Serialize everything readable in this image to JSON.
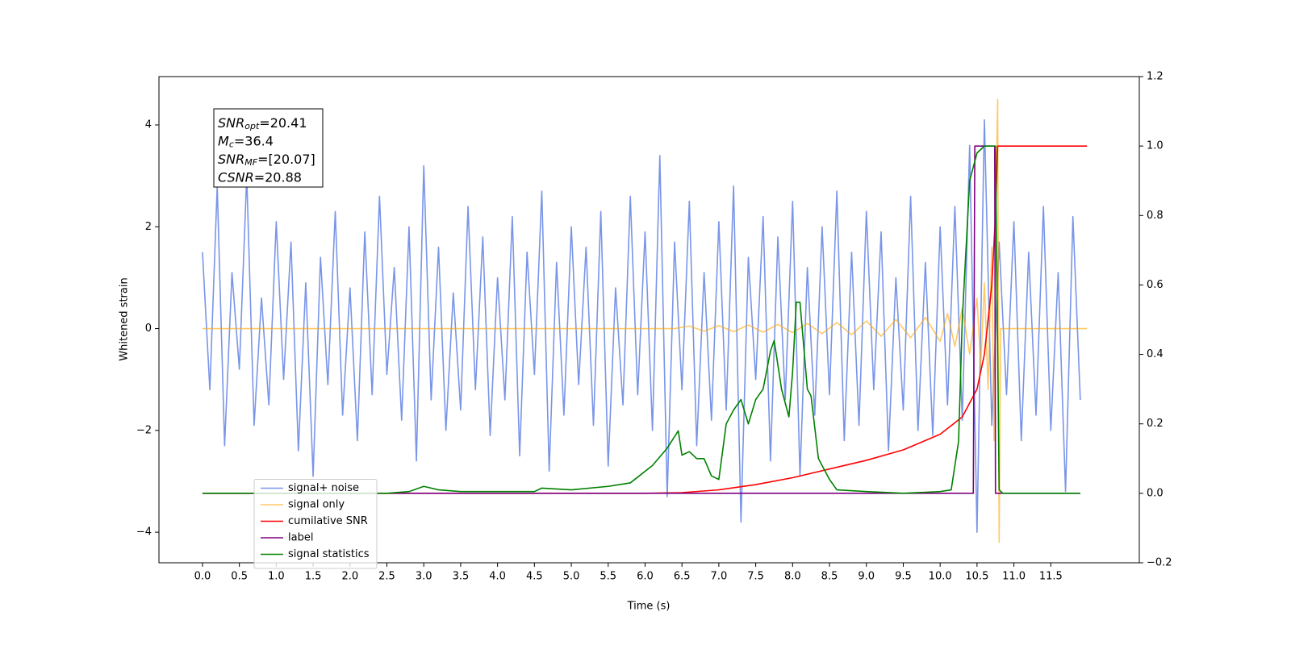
{
  "chart_data": {
    "type": "line",
    "x_label": "Time (s)",
    "y_label": "Whitened strain",
    "xlim": [
      -0.59,
      12.7
    ],
    "ylim": [
      -4.6,
      4.95
    ],
    "y2lim": [
      -0.2,
      1.2
    ],
    "xticks": [
      {
        "value": 0,
        "label": "0.0"
      },
      0.5,
      {
        "value": 1,
        "label": "1.0"
      },
      1.5,
      {
        "value": 2,
        "label": "2.0"
      },
      2.5,
      {
        "value": 3,
        "label": "3.0"
      },
      3.5,
      {
        "value": 4,
        "label": "4.0"
      },
      4.5,
      {
        "value": 5,
        "label": "5.0"
      },
      5.5,
      {
        "value": 6,
        "label": "6.0"
      },
      6.5,
      {
        "value": 7,
        "label": "7.0"
      },
      7.5,
      {
        "value": 8,
        "label": "8.0"
      },
      8.5,
      {
        "value": 9,
        "label": "9.0"
      },
      9.5,
      {
        "value": 10,
        "label": "10.0"
      },
      10.5,
      {
        "value": 11,
        "label": "11.0"
      },
      11.5
    ],
    "yticks": [
      {
        "value": -4,
        "label": "−4"
      },
      {
        "value": -2,
        "label": "−2"
      },
      0,
      2,
      4
    ],
    "y2ticks": [
      {
        "value": -0.2,
        "label": "−0.2"
      },
      {
        "value": 0,
        "label": "0.0"
      },
      0.2,
      0.4,
      0.6,
      0.8,
      {
        "value": 1,
        "label": "1.0"
      },
      1.2
    ],
    "legend": "lower left",
    "annotations": [
      {
        "symbol": "SNR",
        "subscript": "opt",
        "text": "=20.41"
      },
      {
        "symbol": "M",
        "subscript": "c",
        "text": "=36.4"
      },
      {
        "symbol": "SNR",
        "subscript": "MF",
        "text": "=[20.07]"
      },
      {
        "symbol": "CSNR",
        "text": "=20.88"
      }
    ],
    "series": [
      {
        "name": "signal+ noise",
        "color": "#6a8ae6",
        "opacity": 0.9,
        "x": [
          0.0,
          0.1,
          0.2,
          0.3,
          0.4,
          0.5,
          0.6,
          0.7,
          0.8,
          0.9,
          1.0,
          1.1,
          1.2,
          1.3,
          1.4,
          1.5,
          1.6,
          1.7,
          1.8,
          1.9,
          2.0,
          2.1,
          2.2,
          2.3,
          2.4,
          2.5,
          2.6,
          2.7,
          2.8,
          2.9,
          3.0,
          3.1,
          3.2,
          3.3,
          3.4,
          3.5,
          3.6,
          3.7,
          3.8,
          3.9,
          4.0,
          4.1,
          4.2,
          4.3,
          4.4,
          4.5,
          4.6,
          4.7,
          4.8,
          4.9,
          5.0,
          5.1,
          5.2,
          5.3,
          5.4,
          5.5,
          5.6,
          5.7,
          5.8,
          5.9,
          6.0,
          6.1,
          6.2,
          6.3,
          6.4,
          6.5,
          6.6,
          6.7,
          6.8,
          6.9,
          7.0,
          7.1,
          7.2,
          7.3,
          7.4,
          7.5,
          7.6,
          7.7,
          7.8,
          7.9,
          8.0,
          8.1,
          8.2,
          8.3,
          8.4,
          8.5,
          8.6,
          8.7,
          8.8,
          8.9,
          9.0,
          9.1,
          9.2,
          9.3,
          9.4,
          9.5,
          9.6,
          9.7,
          9.8,
          9.9,
          10.0,
          10.1,
          10.2,
          10.3,
          10.4,
          10.5,
          10.6,
          10.7,
          10.8,
          10.9,
          11.0,
          11.1,
          11.2,
          11.3,
          11.4,
          11.5,
          11.6,
          11.7,
          11.8,
          11.9
        ],
        "values": [
          1.5,
          -1.2,
          2.8,
          -2.3,
          1.1,
          -0.8,
          3.0,
          -1.9,
          0.6,
          -1.5,
          2.1,
          -1.0,
          1.7,
          -2.4,
          0.9,
          -2.9,
          1.4,
          -1.1,
          2.3,
          -1.7,
          0.8,
          -2.2,
          1.9,
          -1.3,
          2.6,
          -0.9,
          1.2,
          -1.8,
          2.0,
          -2.6,
          3.2,
          -1.4,
          1.6,
          -2.0,
          0.7,
          -1.6,
          2.4,
          -1.2,
          1.8,
          -2.1,
          1.0,
          -1.4,
          2.2,
          -2.5,
          1.5,
          -0.9,
          2.7,
          -2.8,
          1.3,
          -1.7,
          2.0,
          -1.1,
          1.6,
          -1.9,
          2.3,
          -2.7,
          0.8,
          -1.5,
          2.6,
          -1.3,
          1.9,
          -2.0,
          3.4,
          -3.3,
          1.7,
          -1.2,
          2.5,
          -2.3,
          1.1,
          -1.8,
          2.1,
          -1.6,
          2.8,
          -3.8,
          1.4,
          -1.0,
          2.2,
          -2.6,
          1.8,
          -1.4,
          2.5,
          -2.9,
          1.2,
          -1.7,
          2.0,
          -1.3,
          2.7,
          -2.2,
          1.5,
          -1.9,
          2.3,
          -1.2,
          1.9,
          -2.4,
          1.0,
          -1.6,
          2.6,
          -2.0,
          1.3,
          -2.1,
          2.0,
          -1.5,
          2.4,
          -1.8,
          3.6,
          -4.0,
          4.1,
          -1.9,
          1.7,
          -1.3,
          2.1,
          -2.2,
          1.5,
          -1.7,
          2.4,
          -2.0,
          1.1,
          -3.2,
          2.2,
          -1.4
        ]
      },
      {
        "name": "signal only",
        "color": "#ffa500",
        "opacity": 0.6,
        "x": [
          0,
          6.4,
          6.6,
          6.8,
          7.0,
          7.2,
          7.4,
          7.6,
          7.8,
          8.0,
          8.2,
          8.4,
          8.6,
          8.8,
          9.0,
          9.2,
          9.4,
          9.6,
          9.8,
          10.0,
          10.1,
          10.2,
          10.3,
          10.4,
          10.5,
          10.55,
          10.6,
          10.65,
          10.7,
          10.73,
          10.76,
          10.78,
          10.8,
          10.82,
          11.99
        ],
        "values": [
          0,
          0,
          0.05,
          -0.05,
          0.06,
          -0.06,
          0.07,
          -0.07,
          0.08,
          -0.08,
          0.1,
          -0.1,
          0.12,
          -0.12,
          0.15,
          -0.15,
          0.18,
          -0.18,
          0.22,
          -0.25,
          0.3,
          -0.35,
          0.4,
          -0.5,
          0.6,
          -0.75,
          0.9,
          -1.2,
          1.6,
          -2.2,
          3.0,
          4.5,
          -4.2,
          0,
          0
        ]
      },
      {
        "name": "cumilative SNR",
        "color": "#ff0000",
        "opacity": 1,
        "axis": "y2",
        "x": [
          0,
          6.0,
          6.5,
          7.0,
          7.5,
          8.0,
          8.5,
          9.0,
          9.5,
          10.0,
          10.3,
          10.5,
          10.6,
          10.7,
          10.75,
          10.78,
          10.8,
          11.99
        ],
        "values": [
          0,
          0,
          0.002,
          0.01,
          0.025,
          0.045,
          0.07,
          0.095,
          0.125,
          0.17,
          0.22,
          0.3,
          0.4,
          0.6,
          0.8,
          1.0,
          1.0,
          1.0
        ]
      },
      {
        "name": "label",
        "color": "#800080",
        "opacity": 1,
        "axis": "y2",
        "x": [
          0,
          10.45,
          10.47,
          10.74,
          10.75,
          11.9
        ],
        "values": [
          0,
          0,
          1.0,
          1.0,
          0,
          0
        ]
      },
      {
        "name": "signal statistics",
        "color": "#008000",
        "opacity": 1,
        "axis": "y2",
        "x": [
          0,
          2.5,
          2.8,
          3.0,
          3.2,
          3.5,
          4.5,
          4.6,
          5.0,
          5.5,
          5.8,
          6.1,
          6.3,
          6.45,
          6.5,
          6.6,
          6.7,
          6.8,
          6.9,
          7.0,
          7.1,
          7.2,
          7.3,
          7.4,
          7.5,
          7.6,
          7.7,
          7.75,
          7.85,
          7.95,
          8.0,
          8.05,
          8.1,
          8.2,
          8.25,
          8.35,
          8.5,
          8.6,
          9.0,
          9.5,
          10.0,
          10.15,
          10.25,
          10.3,
          10.4,
          10.5,
          10.6,
          10.75,
          10.8,
          10.85,
          11.9
        ],
        "values": [
          0,
          0,
          0.005,
          0.02,
          0.01,
          0.005,
          0.005,
          0.015,
          0.01,
          0.02,
          0.03,
          0.08,
          0.13,
          0.18,
          0.11,
          0.12,
          0.1,
          0.1,
          0.05,
          0.04,
          0.2,
          0.24,
          0.27,
          0.2,
          0.27,
          0.3,
          0.41,
          0.44,
          0.3,
          0.22,
          0.35,
          0.55,
          0.55,
          0.3,
          0.28,
          0.1,
          0.04,
          0.01,
          0.005,
          0,
          0.005,
          0.01,
          0.15,
          0.5,
          0.9,
          0.98,
          1.0,
          1.0,
          0.01,
          0,
          0
        ]
      }
    ]
  }
}
